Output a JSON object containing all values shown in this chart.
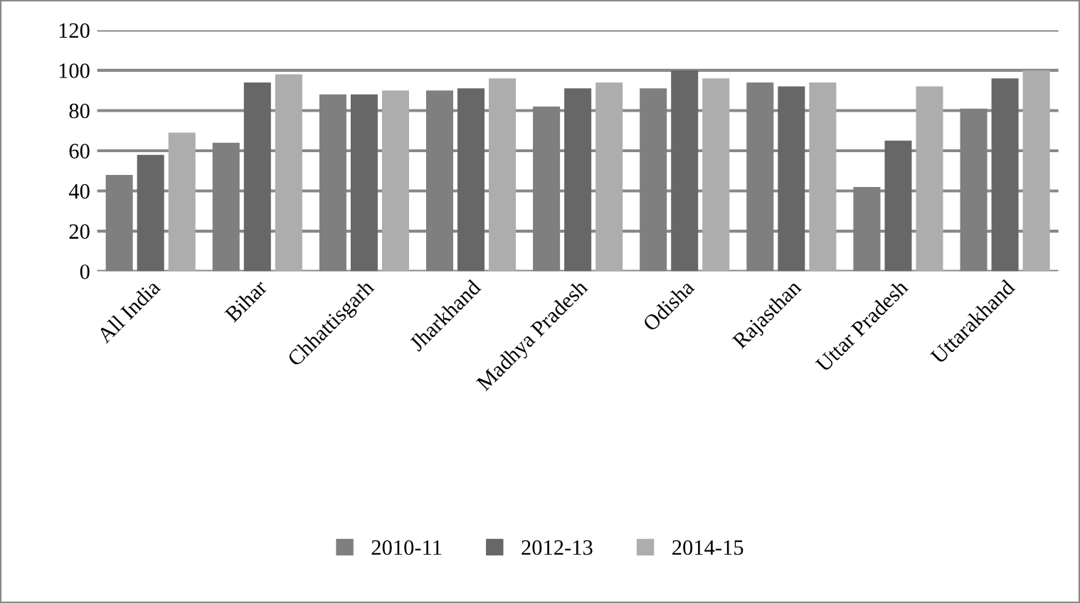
{
  "chart_data": {
    "type": "bar",
    "categories": [
      "All India",
      "Bihar",
      "Chhattisgarh",
      "Jharkhand",
      "Madhya Pradesh",
      "Odisha",
      "Rajasthan",
      "Uttar Pradesh",
      "Uttarakhand"
    ],
    "series": [
      {
        "name": "2010-11",
        "color": "#7f7f7f",
        "values": [
          48,
          64,
          88,
          90,
          82,
          91,
          94,
          42,
          81
        ]
      },
      {
        "name": "2012-13",
        "color": "#676767",
        "values": [
          58,
          94,
          88,
          91,
          91,
          100,
          92,
          65,
          96
        ]
      },
      {
        "name": "2014-15",
        "color": "#adadad",
        "values": [
          69,
          98,
          90,
          96,
          94,
          96,
          94,
          92,
          100
        ]
      }
    ],
    "ylim": [
      0,
      120
    ],
    "yticks": [
      0,
      20,
      40,
      60,
      80,
      100,
      120
    ],
    "grid": "y",
    "legend": "bottom"
  }
}
